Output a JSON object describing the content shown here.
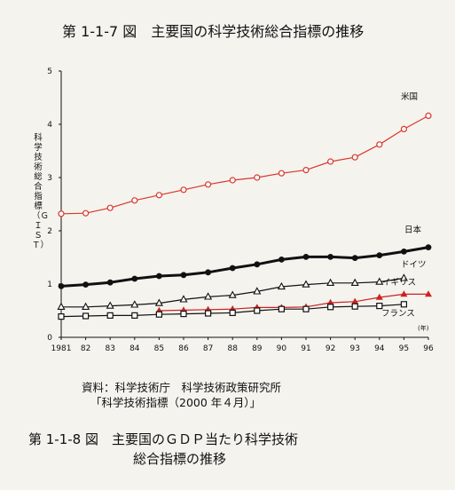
{
  "figure_title": "第 1-1-7 図　主要国の科学技術総合指標の推移",
  "source_line1": "資料：科学技術庁　科学技術政策研究所",
  "source_line2": "「科学技術指標（2000 年４月）」",
  "next_title_line1": "第 1-1-8 図　主要国のＧＤＰ当たり科学技術",
  "next_title_line2": "総合指標の推移",
  "chart_data": {
    "type": "line",
    "title": "第 1-1-7 図　主要国の科学技術総合指標の推移",
    "ylabel": "科学技術総合指標（ＧＩＳＴ）",
    "xlabel": "(年)",
    "x_unit": "(年)",
    "ylim": [
      0,
      5
    ],
    "yticks": [
      "0",
      "1",
      "2",
      "3",
      "4",
      "5"
    ],
    "categories": [
      "1981",
      "82",
      "83",
      "84",
      "85",
      "86",
      "87",
      "88",
      "89",
      "90",
      "91",
      "92",
      "93",
      "94",
      "95",
      "96"
    ],
    "grid": false,
    "series": [
      {
        "name": "米国",
        "color": "#d9362b",
        "marker": "open-circle",
        "values": [
          2.32,
          2.33,
          2.43,
          2.57,
          2.67,
          2.77,
          2.87,
          2.95,
          3.0,
          3.08,
          3.14,
          3.3,
          3.38,
          3.62,
          3.91,
          4.16
        ]
      },
      {
        "name": "日本",
        "color": "#111111",
        "marker": "filled-circle",
        "values": [
          0.96,
          0.99,
          1.03,
          1.1,
          1.15,
          1.17,
          1.22,
          1.3,
          1.37,
          1.46,
          1.51,
          1.51,
          1.49,
          1.54,
          1.61,
          1.69
        ]
      },
      {
        "name": "ドイツ",
        "color": "#111111",
        "marker": "open-triangle",
        "values": [
          0.57,
          0.57,
          0.59,
          0.61,
          0.64,
          0.71,
          0.76,
          0.79,
          0.86,
          0.95,
          0.99,
          1.02,
          1.02,
          1.04,
          1.11,
          null
        ]
      },
      {
        "name": "イギリス",
        "color": "#cc2222",
        "marker": "filled-triangle",
        "values": [
          null,
          null,
          null,
          null,
          0.5,
          0.51,
          0.52,
          0.53,
          0.56,
          0.56,
          0.57,
          0.65,
          0.67,
          0.75,
          0.81,
          0.81
        ]
      },
      {
        "name": "フランス",
        "color": "#111111",
        "marker": "open-square",
        "values": [
          0.39,
          0.4,
          0.41,
          0.41,
          0.43,
          0.44,
          0.45,
          0.46,
          0.5,
          0.53,
          0.53,
          0.57,
          0.58,
          0.59,
          0.62,
          null
        ]
      }
    ]
  }
}
